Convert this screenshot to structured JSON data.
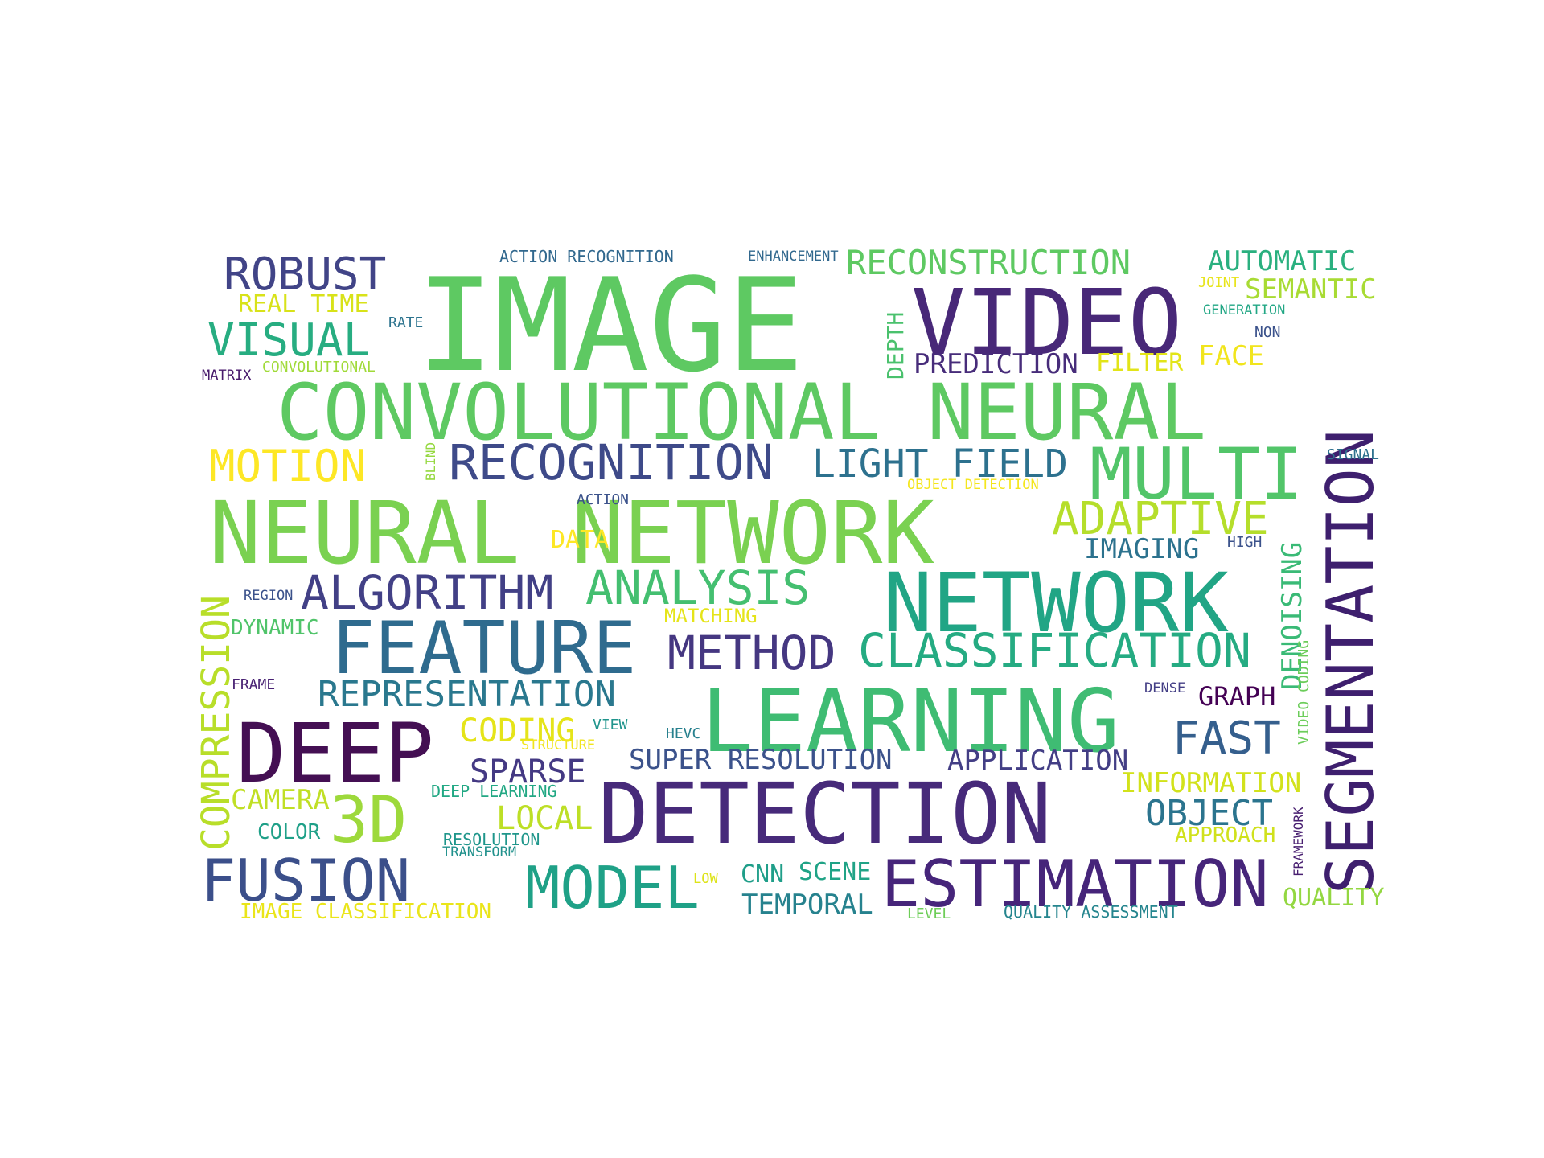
{
  "words": [
    {
      "text": "IMAGE",
      "color": "#5ec962"
    },
    {
      "text": "VIDEO",
      "color": "#482878"
    },
    {
      "text": "SEGMENTATION",
      "color": "#3e1f6e"
    },
    {
      "text": "CONVOLUTIONAL NEURAL",
      "color": "#5ec962"
    },
    {
      "text": "NEURAL NETWORK",
      "color": "#7ad151"
    },
    {
      "text": "NETWORK",
      "color": "#21a585"
    },
    {
      "text": "LEARNING",
      "color": "#3fbc73"
    },
    {
      "text": "DETECTION",
      "color": "#472a7a"
    },
    {
      "text": "DEEP",
      "color": "#440f53"
    },
    {
      "text": "FEATURE",
      "color": "#2f6b8e"
    },
    {
      "text": "MULTI",
      "color": "#52c569"
    },
    {
      "text": "ESTIMATION",
      "color": "#46257a"
    },
    {
      "text": "FUSION",
      "color": "#3b4f8a"
    },
    {
      "text": "MODEL",
      "color": "#1fa187"
    },
    {
      "text": "RECOGNITION",
      "color": "#3e4a89"
    },
    {
      "text": "ROBUST",
      "color": "#414487"
    },
    {
      "text": "3D",
      "color": "#9dd93b"
    },
    {
      "text": "ADAPTIVE",
      "color": "#b5de2b"
    },
    {
      "text": "CLASSIFICATION",
      "color": "#25ab82"
    },
    {
      "text": "METHOD",
      "color": "#453781"
    },
    {
      "text": "ALGORITHM",
      "color": "#424086"
    },
    {
      "text": "ANALYSIS",
      "color": "#44bf70"
    },
    {
      "text": "VISUAL",
      "color": "#27ad81"
    },
    {
      "text": "MOTION",
      "color": "#fde725"
    },
    {
      "text": "LIGHT FIELD",
      "color": "#2d718e"
    },
    {
      "text": "RECONSTRUCTION",
      "color": "#5ec962"
    },
    {
      "text": "FAST",
      "color": "#355f8d"
    },
    {
      "text": "COMPRESSION",
      "color": "#b8de29"
    },
    {
      "text": "REPRESENTATION",
      "color": "#2a788e"
    },
    {
      "text": "OBJECT",
      "color": "#2b748e"
    },
    {
      "text": "SPARSE",
      "color": "#443983"
    },
    {
      "text": "CODING",
      "color": "#e5e419"
    },
    {
      "text": "LOCAL",
      "color": "#bddf26"
    },
    {
      "text": "AUTOMATIC",
      "color": "#2ab07f"
    },
    {
      "text": "SEMANTIC",
      "color": "#a8db34"
    },
    {
      "text": "SUPER RESOLUTION",
      "color": "#3b528b"
    },
    {
      "text": "APPLICATION",
      "color": "#433e85"
    },
    {
      "text": "INFORMATION",
      "color": "#d2e21b"
    },
    {
      "text": "PREDICTION",
      "color": "#472c7a"
    },
    {
      "text": "IMAGING",
      "color": "#2c728e"
    },
    {
      "text": "TEMPORAL",
      "color": "#26828e"
    },
    {
      "text": "CAMERA",
      "color": "#c0df25"
    },
    {
      "text": "DENOISING",
      "color": "#3aba76"
    },
    {
      "text": "FACE",
      "color": "#f1e51d"
    },
    {
      "text": "FILTER",
      "color": "#e2e418"
    },
    {
      "text": "GRAPH",
      "color": "#440154"
    },
    {
      "text": "QUALITY",
      "color": "#93d741"
    },
    {
      "text": "DEPTH",
      "color": "#4ac16d"
    },
    {
      "text": "DATA",
      "color": "#fde725"
    },
    {
      "text": "SCENE",
      "color": "#20a386"
    },
    {
      "text": "CNN",
      "color": "#1f9e89"
    },
    {
      "text": "REAL TIME",
      "color": "#d8e219"
    },
    {
      "text": "DYNAMIC",
      "color": "#50c46a"
    },
    {
      "text": "COLOR",
      "color": "#1fa088"
    },
    {
      "text": "APPROACH",
      "color": "#d0e11c"
    },
    {
      "text": "MATCHING",
      "color": "#e5e419"
    },
    {
      "text": "IMAGE CLASSIFICATION",
      "color": "#eae51a"
    },
    {
      "text": "ACTION RECOGNITION",
      "color": "#31688e"
    },
    {
      "text": "CONVOLUTIONAL",
      "color": "#a0da39"
    },
    {
      "text": "DEEP LEARNING",
      "color": "#22a884"
    },
    {
      "text": "QUALITY ASSESSMENT",
      "color": "#25858e"
    },
    {
      "text": "VIDEO CODING",
      "color": "#6ccd5a"
    },
    {
      "text": "ENHANCEMENT",
      "color": "#31688e"
    },
    {
      "text": "RATE",
      "color": "#2c738e"
    },
    {
      "text": "MATRIX",
      "color": "#481a6c"
    },
    {
      "text": "BLIND",
      "color": "#95d840"
    },
    {
      "text": "ACTION",
      "color": "#3b528b"
    },
    {
      "text": "OBJECT DETECTION",
      "color": "#f4e61e"
    },
    {
      "text": "SIGNAL",
      "color": "#2d708e"
    },
    {
      "text": "HIGH",
      "color": "#3b528b"
    },
    {
      "text": "REGION",
      "color": "#3b528b"
    },
    {
      "text": "FRAME",
      "color": "#482173"
    },
    {
      "text": "VIEW",
      "color": "#1f948c"
    },
    {
      "text": "STRUCTURE",
      "color": "#f1e51d"
    },
    {
      "text": "HEVC",
      "color": "#27808e"
    },
    {
      "text": "RESOLUTION",
      "color": "#1f968b"
    },
    {
      "text": "TRANSFORM",
      "color": "#21918c"
    },
    {
      "text": "LOW",
      "color": "#dde318"
    },
    {
      "text": "LEVEL",
      "color": "#6ece58"
    },
    {
      "text": "FRAMEWORK",
      "color": "#481f70"
    },
    {
      "text": "DENSE",
      "color": "#433e85"
    },
    {
      "text": "JOINT",
      "color": "#e7e419"
    },
    {
      "text": "GENERATION",
      "color": "#22a785"
    },
    {
      "text": "NON",
      "color": "#3b528b"
    }
  ]
}
